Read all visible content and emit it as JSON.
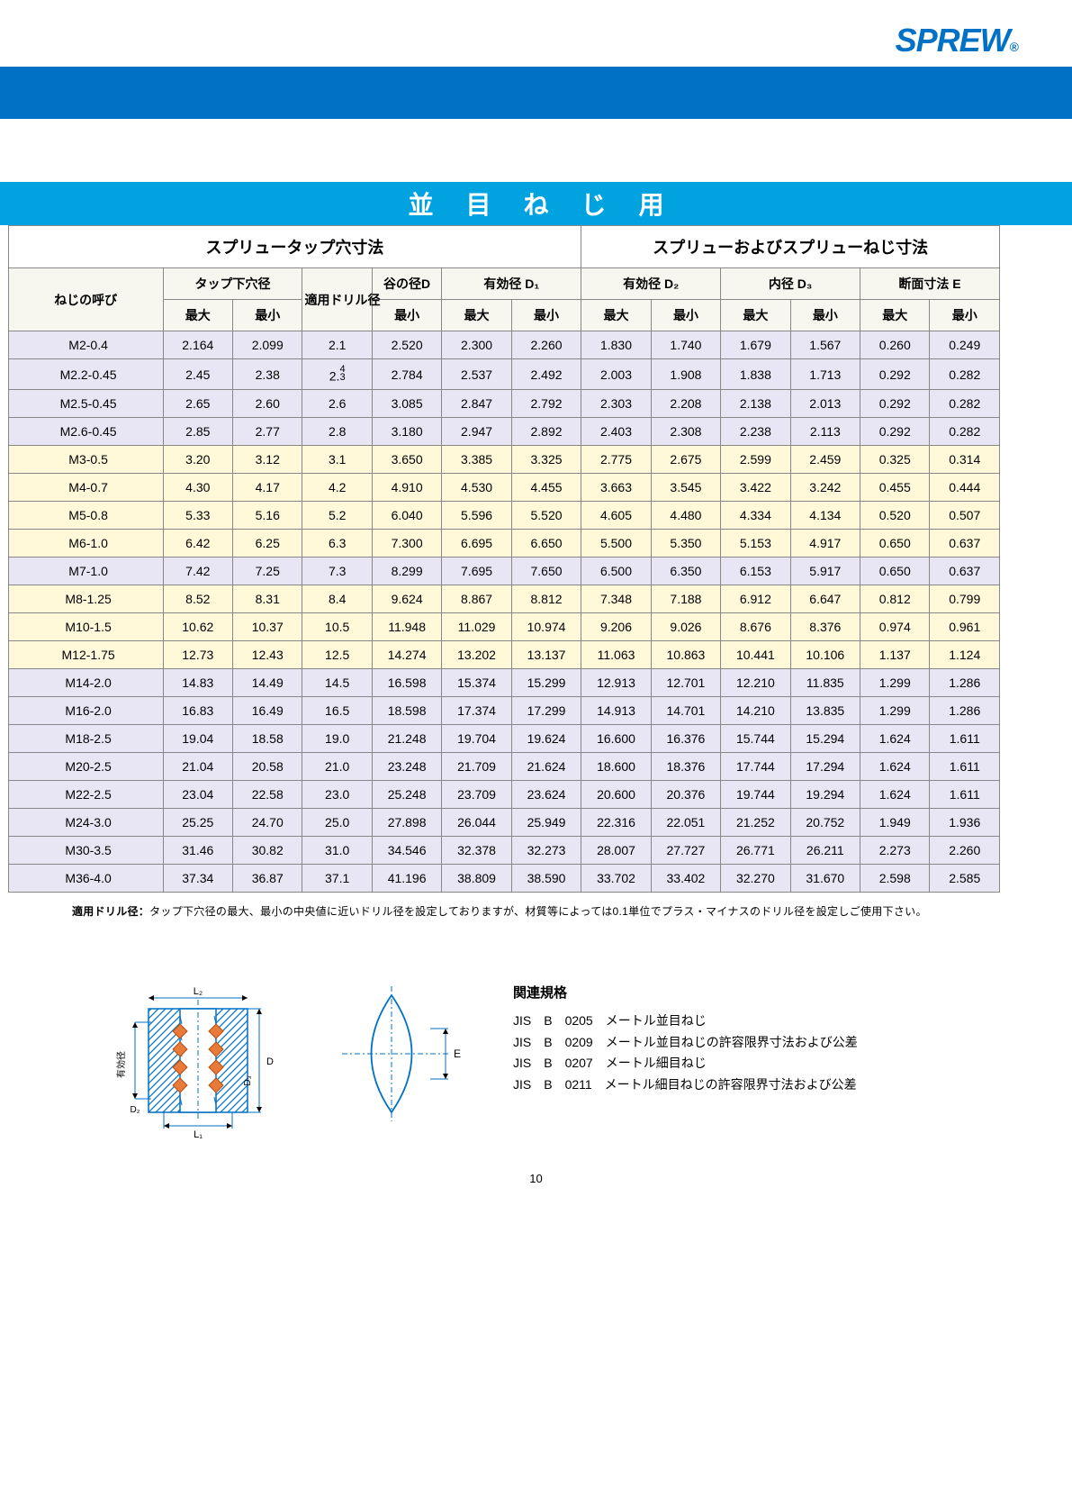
{
  "colors": {
    "brand_blue": "#0071c5",
    "title_bg": "#00a3e0",
    "header_bg_left": "#ffffff",
    "header_bg_right": "#ffffff",
    "border": "#888888",
    "row_lavender": "#e8e6f5",
    "row_cream": "#fff9d9",
    "text": "#222222",
    "subhead_bg": "#f7f7ef"
  },
  "logo_text": "SPREW",
  "logo_reg": "®",
  "title": "並目ねじ用",
  "group_left": "スプリュータップ穴寸法",
  "group_right": "スプリューおよびスプリューねじ寸法",
  "row_header": {
    "name": "ねじの呼び",
    "tap_dia": "タップ下穴径",
    "drill": "適用ドリル径",
    "root_d": "谷の径D",
    "eff_d1": "有効径 D₁",
    "eff_d2": "有効径 D₂",
    "inner_d3": "内径 D₃",
    "sect_e": "断面寸法 E",
    "max": "最大",
    "min": "最小"
  },
  "table": {
    "columns_right_start_index": 7,
    "rows": [
      {
        "color": "lavender",
        "name": "M2-0.4",
        "v": [
          "2.164",
          "2.099",
          "2.1",
          "2.520",
          "2.300",
          "2.260",
          "1.830",
          "1.740",
          "1.679",
          "1.567",
          "0.260",
          "0.249"
        ]
      },
      {
        "color": "lavender",
        "name": "M2.2-0.45",
        "v": [
          "2.45",
          "2.38",
          "2.4/3",
          "2.784",
          "2.537",
          "2.492",
          "2.003",
          "1.908",
          "1.838",
          "1.713",
          "0.292",
          "0.282"
        ]
      },
      {
        "color": "lavender",
        "name": "M2.5-0.45",
        "v": [
          "2.65",
          "2.60",
          "2.6",
          "3.085",
          "2.847",
          "2.792",
          "2.303",
          "2.208",
          "2.138",
          "2.013",
          "0.292",
          "0.282"
        ]
      },
      {
        "color": "lavender",
        "name": "M2.6-0.45",
        "v": [
          "2.85",
          "2.77",
          "2.8",
          "3.180",
          "2.947",
          "2.892",
          "2.403",
          "2.308",
          "2.238",
          "2.113",
          "0.292",
          "0.282"
        ]
      },
      {
        "color": "cream",
        "name": "M3-0.5",
        "v": [
          "3.20",
          "3.12",
          "3.1",
          "3.650",
          "3.385",
          "3.325",
          "2.775",
          "2.675",
          "2.599",
          "2.459",
          "0.325",
          "0.314"
        ]
      },
      {
        "color": "cream",
        "name": "M4-0.7",
        "v": [
          "4.30",
          "4.17",
          "4.2",
          "4.910",
          "4.530",
          "4.455",
          "3.663",
          "3.545",
          "3.422",
          "3.242",
          "0.455",
          "0.444"
        ]
      },
      {
        "color": "cream",
        "name": "M5-0.8",
        "v": [
          "5.33",
          "5.16",
          "5.2",
          "6.040",
          "5.596",
          "5.520",
          "4.605",
          "4.480",
          "4.334",
          "4.134",
          "0.520",
          "0.507"
        ]
      },
      {
        "color": "cream",
        "name": "M6-1.0",
        "v": [
          "6.42",
          "6.25",
          "6.3",
          "7.300",
          "6.695",
          "6.650",
          "5.500",
          "5.350",
          "5.153",
          "4.917",
          "0.650",
          "0.637"
        ]
      },
      {
        "color": "lavender",
        "name": "M7-1.0",
        "v": [
          "7.42",
          "7.25",
          "7.3",
          "8.299",
          "7.695",
          "7.650",
          "6.500",
          "6.350",
          "6.153",
          "5.917",
          "0.650",
          "0.637"
        ]
      },
      {
        "color": "cream",
        "name": "M8-1.25",
        "v": [
          "8.52",
          "8.31",
          "8.4",
          "9.624",
          "8.867",
          "8.812",
          "7.348",
          "7.188",
          "6.912",
          "6.647",
          "0.812",
          "0.799"
        ]
      },
      {
        "color": "cream",
        "name": "M10-1.5",
        "v": [
          "10.62",
          "10.37",
          "10.5",
          "11.948",
          "11.029",
          "10.974",
          "9.206",
          "9.026",
          "8.676",
          "8.376",
          "0.974",
          "0.961"
        ]
      },
      {
        "color": "cream",
        "name": "M12-1.75",
        "v": [
          "12.73",
          "12.43",
          "12.5",
          "14.274",
          "13.202",
          "13.137",
          "11.063",
          "10.863",
          "10.441",
          "10.106",
          "1.137",
          "1.124"
        ]
      },
      {
        "color": "lavender",
        "name": "M14-2.0",
        "v": [
          "14.83",
          "14.49",
          "14.5",
          "16.598",
          "15.374",
          "15.299",
          "12.913",
          "12.701",
          "12.210",
          "11.835",
          "1.299",
          "1.286"
        ]
      },
      {
        "color": "lavender",
        "name": "M16-2.0",
        "v": [
          "16.83",
          "16.49",
          "16.5",
          "18.598",
          "17.374",
          "17.299",
          "14.913",
          "14.701",
          "14.210",
          "13.835",
          "1.299",
          "1.286"
        ]
      },
      {
        "color": "lavender",
        "name": "M18-2.5",
        "v": [
          "19.04",
          "18.58",
          "19.0",
          "21.248",
          "19.704",
          "19.624",
          "16.600",
          "16.376",
          "15.744",
          "15.294",
          "1.624",
          "1.611"
        ]
      },
      {
        "color": "lavender",
        "name": "M20-2.5",
        "v": [
          "21.04",
          "20.58",
          "21.0",
          "23.248",
          "21.709",
          "21.624",
          "18.600",
          "18.376",
          "17.744",
          "17.294",
          "1.624",
          "1.611"
        ]
      },
      {
        "color": "lavender",
        "name": "M22-2.5",
        "v": [
          "23.04",
          "22.58",
          "23.0",
          "25.248",
          "23.709",
          "23.624",
          "20.600",
          "20.376",
          "19.744",
          "19.294",
          "1.624",
          "1.611"
        ]
      },
      {
        "color": "lavender",
        "name": "M24-3.0",
        "v": [
          "25.25",
          "24.70",
          "25.0",
          "27.898",
          "26.044",
          "25.949",
          "22.316",
          "22.051",
          "21.252",
          "20.752",
          "1.949",
          "1.936"
        ]
      },
      {
        "color": "lavender",
        "name": "M30-3.5",
        "v": [
          "31.46",
          "30.82",
          "31.0",
          "34.546",
          "32.378",
          "32.273",
          "28.007",
          "27.727",
          "26.771",
          "26.211",
          "2.273",
          "2.260"
        ]
      },
      {
        "color": "lavender",
        "name": "M36-4.0",
        "v": [
          "37.34",
          "36.87",
          "37.1",
          "41.196",
          "38.809",
          "38.590",
          "33.702",
          "33.402",
          "32.270",
          "31.670",
          "2.598",
          "2.585"
        ]
      }
    ]
  },
  "note_label": "適用ドリル径：",
  "note_text": "タップ下穴径の最大、最小の中央値に近いドリル径を設定しておりますが、材質等によっては0.1単位でプラス・マイナスのドリル径を設定しご使用下さい。",
  "standards_title": "関連規格",
  "standards": [
    "JIS　B　0205　メートル並目ねじ",
    "JIS　B　0209　メートル並目ねじの許容限界寸法および公差",
    "JIS　B　0207　メートル細目ねじ",
    "JIS　B　0211　メートル細目ねじの許容限界寸法および公差"
  ],
  "diagram_labels": {
    "L1": "L₁",
    "L2": "L₂",
    "D": "D",
    "D2": "D₂",
    "D3": "D₃",
    "E": "E",
    "eff": "有効径"
  },
  "diagram_colors": {
    "line": "#0071c5",
    "hatch": "#0071c5",
    "insert": "#e97b3a",
    "insert_border": "#b24f15"
  },
  "page_number": "10"
}
